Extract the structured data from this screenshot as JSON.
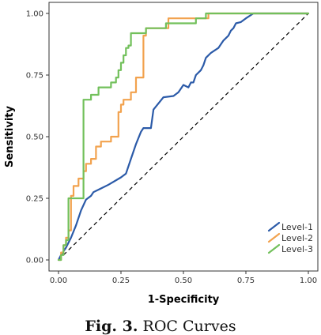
{
  "caption": {
    "label": "Fig. 3.",
    "text": "ROC Curves"
  },
  "chart_data": {
    "type": "line",
    "title": "",
    "xlabel": "1-Specificity",
    "ylabel": "Sensitivity",
    "xlim": [
      0,
      1
    ],
    "ylim": [
      0,
      1
    ],
    "xticks": [
      "0.00",
      "0.25",
      "0.50",
      "0.75",
      "1.00"
    ],
    "yticks": [
      "0.00",
      "0.25",
      "0.50",
      "0.75",
      "1.00"
    ],
    "grid": false,
    "legend": "bottom-right",
    "reference_line": {
      "style": "dashed",
      "from": [
        0,
        0
      ],
      "to": [
        1,
        1
      ],
      "color": "#000000"
    },
    "series": [
      {
        "name": "Level-1",
        "color": "#2b5aa8",
        "step": false,
        "points": [
          [
            0,
            0
          ],
          [
            0.01,
            0.02
          ],
          [
            0.03,
            0.05
          ],
          [
            0.05,
            0.09
          ],
          [
            0.07,
            0.14
          ],
          [
            0.09,
            0.2
          ],
          [
            0.11,
            0.245
          ],
          [
            0.13,
            0.26
          ],
          [
            0.14,
            0.275
          ],
          [
            0.2,
            0.305
          ],
          [
            0.25,
            0.335
          ],
          [
            0.27,
            0.35
          ],
          [
            0.29,
            0.41
          ],
          [
            0.31,
            0.47
          ],
          [
            0.33,
            0.52
          ],
          [
            0.34,
            0.535
          ],
          [
            0.37,
            0.535
          ],
          [
            0.38,
            0.61
          ],
          [
            0.42,
            0.66
          ],
          [
            0.46,
            0.665
          ],
          [
            0.48,
            0.68
          ],
          [
            0.5,
            0.71
          ],
          [
            0.52,
            0.7
          ],
          [
            0.53,
            0.72
          ],
          [
            0.54,
            0.72
          ],
          [
            0.55,
            0.75
          ],
          [
            0.57,
            0.77
          ],
          [
            0.58,
            0.79
          ],
          [
            0.59,
            0.82
          ],
          [
            0.61,
            0.84
          ],
          [
            0.64,
            0.86
          ],
          [
            0.66,
            0.89
          ],
          [
            0.68,
            0.91
          ],
          [
            0.69,
            0.93
          ],
          [
            0.7,
            0.94
          ],
          [
            0.71,
            0.96
          ],
          [
            0.73,
            0.965
          ],
          [
            0.75,
            0.98
          ],
          [
            0.78,
            1.0
          ],
          [
            1.0,
            1.0
          ]
        ]
      },
      {
        "name": "Level-2",
        "color": "#f2a24e",
        "step": true,
        "points": [
          [
            0,
            0
          ],
          [
            0.01,
            0.0
          ],
          [
            0.01,
            0.03
          ],
          [
            0.02,
            0.03
          ],
          [
            0.02,
            0.06
          ],
          [
            0.03,
            0.06
          ],
          [
            0.03,
            0.09
          ],
          [
            0.04,
            0.09
          ],
          [
            0.04,
            0.12
          ],
          [
            0.05,
            0.12
          ],
          [
            0.05,
            0.26
          ],
          [
            0.06,
            0.26
          ],
          [
            0.06,
            0.3
          ],
          [
            0.08,
            0.3
          ],
          [
            0.08,
            0.33
          ],
          [
            0.1,
            0.33
          ],
          [
            0.1,
            0.36
          ],
          [
            0.11,
            0.36
          ],
          [
            0.11,
            0.39
          ],
          [
            0.13,
            0.39
          ],
          [
            0.13,
            0.41
          ],
          [
            0.15,
            0.41
          ],
          [
            0.15,
            0.46
          ],
          [
            0.17,
            0.46
          ],
          [
            0.17,
            0.48
          ],
          [
            0.21,
            0.48
          ],
          [
            0.21,
            0.5
          ],
          [
            0.24,
            0.5
          ],
          [
            0.24,
            0.6
          ],
          [
            0.25,
            0.6
          ],
          [
            0.25,
            0.63
          ],
          [
            0.26,
            0.63
          ],
          [
            0.26,
            0.65
          ],
          [
            0.29,
            0.65
          ],
          [
            0.29,
            0.68
          ],
          [
            0.31,
            0.68
          ],
          [
            0.31,
            0.74
          ],
          [
            0.34,
            0.74
          ],
          [
            0.34,
            0.91
          ],
          [
            0.35,
            0.91
          ],
          [
            0.35,
            0.94
          ],
          [
            0.44,
            0.94
          ],
          [
            0.44,
            0.98
          ],
          [
            0.46,
            0.98
          ],
          [
            0.46,
            0.98
          ],
          [
            0.6,
            0.98
          ],
          [
            0.6,
            1.0
          ],
          [
            1.0,
            1.0
          ]
        ]
      },
      {
        "name": "Level-3",
        "color": "#72c05b",
        "step": true,
        "points": [
          [
            0,
            0
          ],
          [
            0.01,
            0.0
          ],
          [
            0.01,
            0.02
          ],
          [
            0.02,
            0.02
          ],
          [
            0.02,
            0.06
          ],
          [
            0.03,
            0.06
          ],
          [
            0.03,
            0.08
          ],
          [
            0.04,
            0.08
          ],
          [
            0.04,
            0.25
          ],
          [
            0.07,
            0.25
          ],
          [
            0.07,
            0.25
          ],
          [
            0.1,
            0.25
          ],
          [
            0.1,
            0.65
          ],
          [
            0.13,
            0.65
          ],
          [
            0.13,
            0.67
          ],
          [
            0.16,
            0.67
          ],
          [
            0.16,
            0.7
          ],
          [
            0.21,
            0.7
          ],
          [
            0.21,
            0.72
          ],
          [
            0.23,
            0.72
          ],
          [
            0.23,
            0.74
          ],
          [
            0.24,
            0.74
          ],
          [
            0.24,
            0.77
          ],
          [
            0.25,
            0.77
          ],
          [
            0.25,
            0.8
          ],
          [
            0.26,
            0.8
          ],
          [
            0.26,
            0.83
          ],
          [
            0.27,
            0.83
          ],
          [
            0.27,
            0.86
          ],
          [
            0.28,
            0.86
          ],
          [
            0.28,
            0.87
          ],
          [
            0.29,
            0.87
          ],
          [
            0.29,
            0.92
          ],
          [
            0.35,
            0.92
          ],
          [
            0.35,
            0.94
          ],
          [
            0.43,
            0.94
          ],
          [
            0.43,
            0.96
          ],
          [
            0.55,
            0.96
          ],
          [
            0.55,
            0.98
          ],
          [
            0.59,
            0.98
          ],
          [
            0.59,
            1.0
          ],
          [
            1.0,
            1.0
          ]
        ]
      }
    ]
  }
}
